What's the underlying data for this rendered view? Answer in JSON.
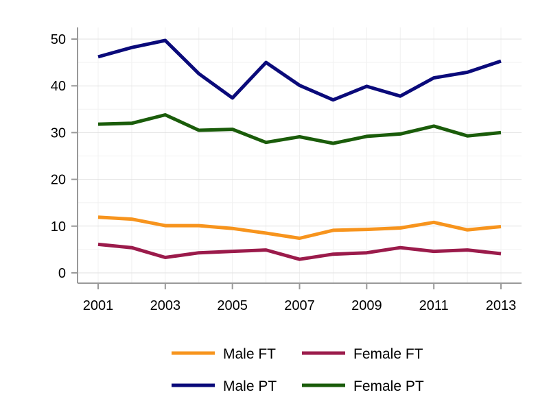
{
  "chart_data": {
    "type": "line",
    "x": [
      2001,
      2002,
      2003,
      2004,
      2005,
      2006,
      2007,
      2008,
      2009,
      2010,
      2011,
      2012,
      2013
    ],
    "x_ticks": [
      "2001",
      "2003",
      "2005",
      "2007",
      "2009",
      "2011",
      "2013"
    ],
    "y_ticks": [
      "0",
      "10",
      "20",
      "30",
      "40",
      "50"
    ],
    "xlim": [
      2001,
      2013
    ],
    "ylim": [
      0,
      50
    ],
    "grid": true,
    "legend_position": "bottom",
    "series": [
      {
        "name": "Male FT",
        "color": "#f7941d",
        "values": [
          11.9,
          11.5,
          10.1,
          10.1,
          9.5,
          8.5,
          7.4,
          9.1,
          9.3,
          9.6,
          10.8,
          9.2,
          9.9
        ]
      },
      {
        "name": "Female FT",
        "color": "#9b1b4b",
        "values": [
          6.1,
          5.4,
          3.3,
          4.3,
          4.6,
          4.9,
          2.9,
          4.0,
          4.3,
          5.4,
          4.6,
          4.9,
          4.1
        ]
      },
      {
        "name": "Male PT",
        "color": "#0a0a7a",
        "values": [
          46.2,
          48.2,
          49.7,
          42.6,
          37.4,
          45.0,
          40.1,
          37.0,
          39.9,
          37.8,
          41.7,
          42.9,
          45.3
        ]
      },
      {
        "name": "Female PT",
        "color": "#1a5c0a",
        "values": [
          31.8,
          32.0,
          33.8,
          30.5,
          30.7,
          27.9,
          29.1,
          27.7,
          29.2,
          29.7,
          31.4,
          29.3,
          30.0
        ]
      }
    ]
  }
}
